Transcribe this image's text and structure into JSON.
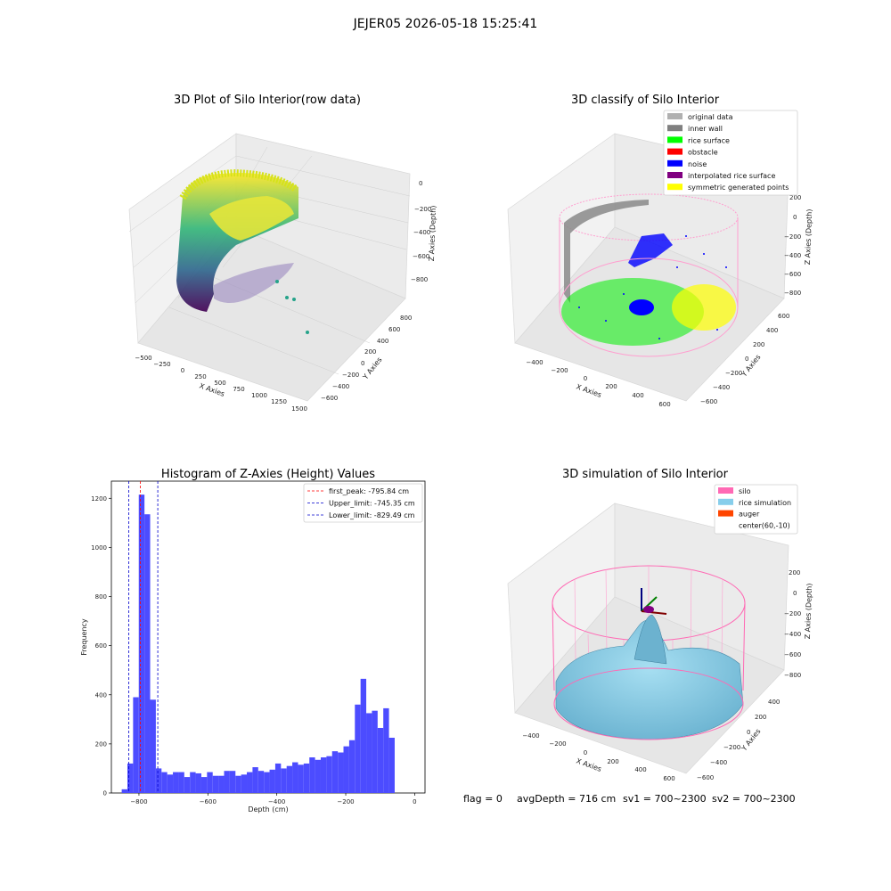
{
  "figure": {
    "suptitle": "JEJER05 2026-05-18 15:25:41",
    "footer": {
      "flag": "flag = 0",
      "avg": "avgDepth = 716 cm",
      "sv1": "sv1 = 700~2300",
      "sv2": "sv2 = 700~2300"
    }
  },
  "colors": {
    "viridis_dark": "#46327e",
    "viridis_mid": "#21918c",
    "viridis_light": "#b5de2b",
    "viridis_yellow": "#fde725",
    "hist_bar": "#4c4cff",
    "first_peak_line": "#ff0000",
    "limit_line": "#0000cc",
    "silo_pink": "#ff69b4",
    "rice_sky": "#87ceeb",
    "auger_orange": "#ff4500"
  },
  "chart_data": [
    {
      "type": "scatter",
      "subtype": "3d",
      "title": "3D Plot of Silo Interior(row data)",
      "xlabel": "X Axies",
      "ylabel": "Y Axies",
      "zlabel": "Z Axies (Depth)",
      "x_ticks": [
        "−500",
        "−250",
        "0",
        "250",
        "500",
        "750",
        "1000",
        "1250",
        "1500"
      ],
      "y_ticks": [
        "800",
        "600",
        "400",
        "200",
        "0",
        "−200",
        "−400",
        "−600"
      ],
      "z_ticks": [
        "0",
        "−200",
        "−400",
        "−600",
        "−800"
      ],
      "colormap": "viridis"
    },
    {
      "type": "scatter",
      "subtype": "3d",
      "title": "3D classify of Silo Interior",
      "xlabel": "X Axies",
      "ylabel": "Y Axies",
      "zlabel": "Z Axies (Depth)",
      "x_ticks": [
        "−400",
        "−200",
        "0",
        "200",
        "400",
        "600"
      ],
      "y_ticks": [
        "600",
        "400",
        "200",
        "0",
        "−200",
        "−400",
        "−600"
      ],
      "z_ticks": [
        "200",
        "0",
        "−200",
        "−400",
        "−600",
        "−800"
      ],
      "legend_position": "top-right",
      "legend": [
        {
          "label": "original data",
          "color": "#b0b0b0"
        },
        {
          "label": "inner wall",
          "color": "#808080"
        },
        {
          "label": "rice surface",
          "color": "#00ff00"
        },
        {
          "label": "obstacle",
          "color": "#ff0000"
        },
        {
          "label": "noise",
          "color": "#0000ff"
        },
        {
          "label": "interpolated rice surface",
          "color": "#800080"
        },
        {
          "label": "symmetric generated points",
          "color": "#ffff00"
        }
      ]
    },
    {
      "type": "bar",
      "subtype": "histogram",
      "title": "Histogram of Z-Axies (Height) Values",
      "xlabel": "Depth (cm)",
      "ylabel": "Frequency",
      "xlim": [
        -880,
        30
      ],
      "ylim": [
        0,
        1270
      ],
      "x_ticks": [
        -800,
        -600,
        -400,
        -200,
        0
      ],
      "x_tick_labels": [
        "−800",
        "−600",
        "−400",
        "−200",
        "0"
      ],
      "y_ticks": [
        0,
        200,
        400,
        600,
        800,
        1000,
        1200
      ],
      "y_tick_labels": [
        "0",
        "200",
        "400",
        "600",
        "800",
        "1000",
        "1200"
      ],
      "bin_width": 16.5,
      "bin_start": -850,
      "values": [
        15,
        120,
        390,
        1215,
        1135,
        380,
        100,
        85,
        75,
        85,
        85,
        65,
        85,
        80,
        65,
        85,
        70,
        70,
        90,
        90,
        70,
        75,
        85,
        105,
        90,
        85,
        95,
        120,
        100,
        110,
        125,
        115,
        120,
        145,
        135,
        145,
        150,
        170,
        165,
        190,
        215,
        360,
        465,
        325,
        335,
        265,
        345,
        225
      ],
      "vlines": [
        {
          "label": "first_peak: -795.84 cm",
          "x": -795.84,
          "color": "#ff0000"
        },
        {
          "label": "Upper_limit: -745.35 cm",
          "x": -745.35,
          "color": "#0000cc"
        },
        {
          "label": "Lower_limit: -829.49 cm",
          "x": -829.49,
          "color": "#0000cc"
        }
      ],
      "legend_position": "top-right"
    },
    {
      "type": "area",
      "subtype": "3d-surface",
      "title": "3D simulation of Silo Interior",
      "xlabel": "X Axies",
      "ylabel": "Y Axies",
      "zlabel": "Z Axies (Depth)",
      "x_ticks": [
        "−400",
        "−200",
        "0",
        "200",
        "400",
        "600"
      ],
      "y_ticks": [
        "400",
        "200",
        "0",
        "−200",
        "−400",
        "−600"
      ],
      "z_ticks": [
        "200",
        "0",
        "−200",
        "−400",
        "−600",
        "−800"
      ],
      "legend_position": "top-right",
      "legend": [
        {
          "label": "silo",
          "color": "#ff69b4"
        },
        {
          "label": "rice simulation",
          "color": "#87ceeb"
        },
        {
          "label": "auger",
          "color": "#ff4500"
        },
        {
          "label": "center(60,-10)",
          "color": ""
        }
      ]
    }
  ]
}
